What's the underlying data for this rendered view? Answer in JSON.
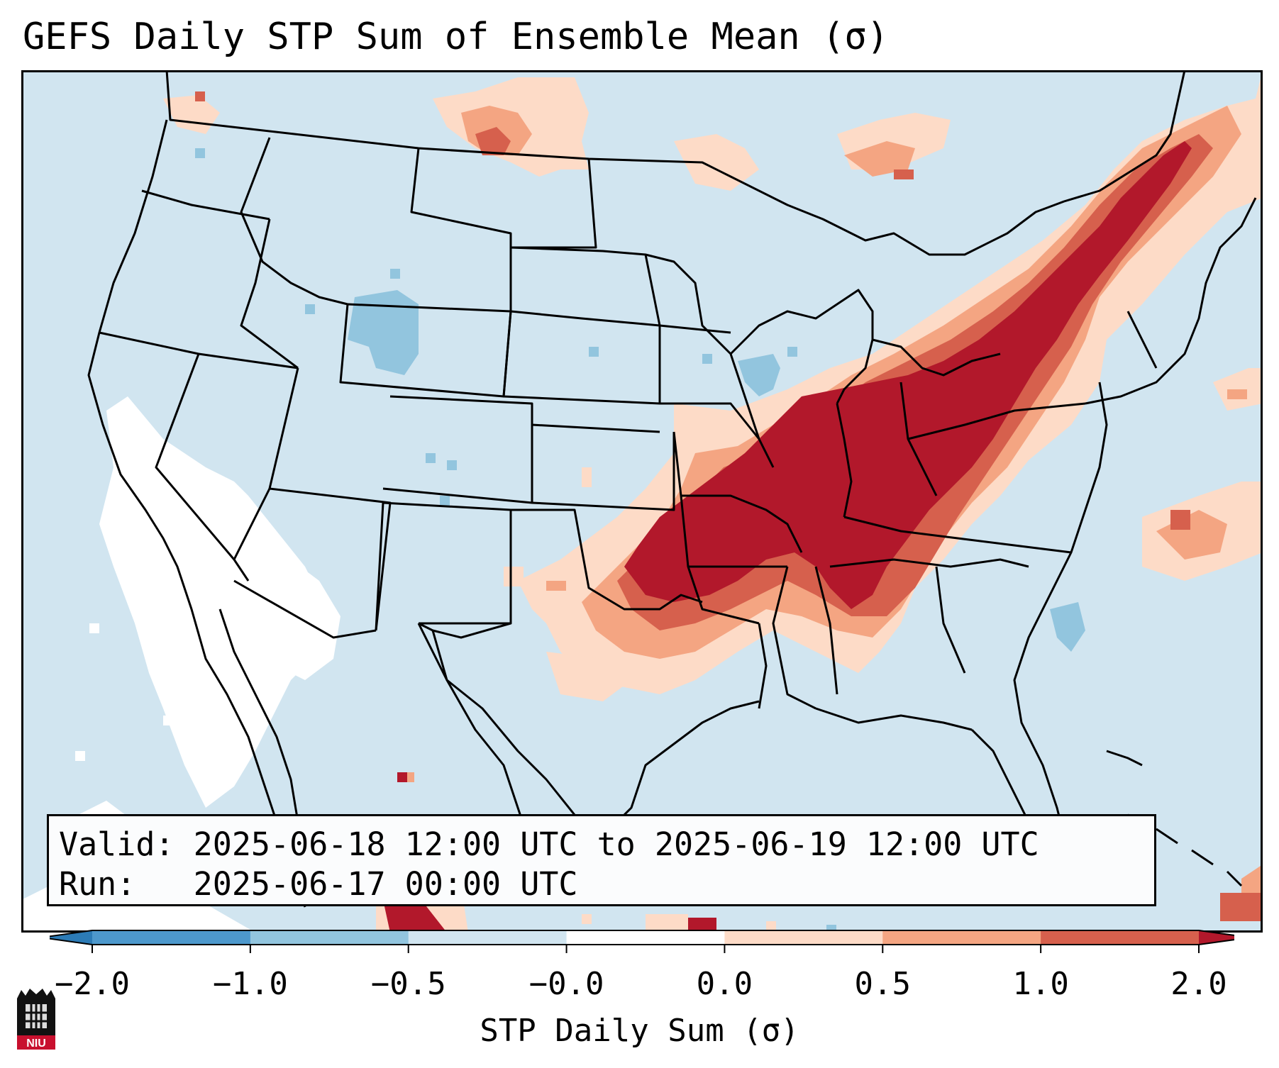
{
  "title": "GEFS Daily STP Sum of Ensemble Mean (σ)",
  "info": {
    "valid": "Valid: 2025-06-18 12:00 UTC to 2025-06-19 12:00 UTC",
    "run": "Run:   2025-06-17 00:00 UTC"
  },
  "colorbar": {
    "label": "STP Daily Sum (σ)",
    "ticks": [
      "−2.0",
      "−1.0",
      "−0.5",
      "−0.0",
      "0.0",
      "0.5",
      "1.0",
      "2.0"
    ],
    "colors": [
      "#2c7bb6",
      "#4d98cc",
      "#92c5de",
      "#d1e5f0",
      "#ffffff",
      "#fddbc7",
      "#f4a582",
      "#d6604d",
      "#b2182b"
    ]
  },
  "legend_colors": {
    "background": "#d1e5f0",
    "strong_positive": "#b2182b",
    "positive": "#d6604d",
    "weak_positive": "#f4a582",
    "very_weak_positive": "#fddbc7",
    "near_zero": "#ffffff",
    "weak_negative": "#92c5de"
  },
  "logo": {
    "text": "NIU"
  }
}
